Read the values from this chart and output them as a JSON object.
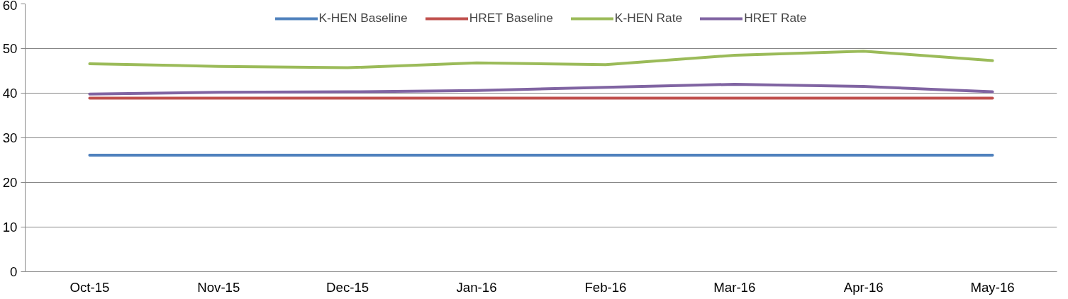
{
  "chart_data": {
    "type": "line",
    "categories": [
      "Oct-15",
      "Nov-15",
      "Dec-15",
      "Jan-16",
      "Feb-16",
      "Mar-16",
      "Apr-16",
      "May-16"
    ],
    "series": [
      {
        "name": "K-HEN Baseline",
        "color": "#4f81bd",
        "values": [
          26.1,
          26.1,
          26.1,
          26.1,
          26.1,
          26.1,
          26.1,
          26.1
        ]
      },
      {
        "name": "HRET Baseline",
        "color": "#c0504d",
        "values": [
          38.9,
          38.9,
          38.9,
          38.9,
          38.9,
          38.9,
          38.9,
          38.9
        ]
      },
      {
        "name": "K-HEN Rate",
        "color": "#9bbb59",
        "values": [
          46.6,
          46.0,
          45.7,
          46.8,
          46.4,
          48.5,
          49.4,
          47.3
        ]
      },
      {
        "name": "HRET Rate",
        "color": "#8064a2",
        "values": [
          39.8,
          40.2,
          40.3,
          40.6,
          41.3,
          42.0,
          41.5,
          40.3
        ]
      }
    ],
    "ylim": [
      0,
      60
    ],
    "yticks": [
      0,
      10,
      20,
      30,
      40,
      50,
      60
    ],
    "grid": "y",
    "legend": "top",
    "marker": "none",
    "line_style": "solid"
  }
}
